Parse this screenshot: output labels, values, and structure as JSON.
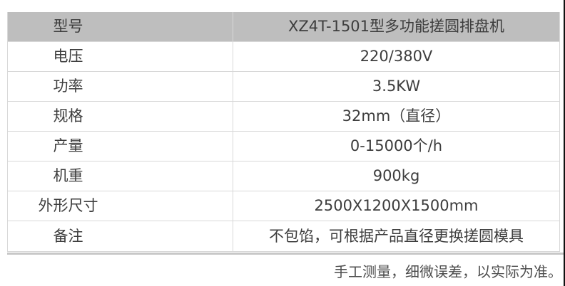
{
  "table": {
    "header": {
      "label": "型号",
      "value": "XZ4T-1501型多功能搓圆排盘机"
    },
    "rows": [
      {
        "label": "电压",
        "value": "220/380V"
      },
      {
        "label": "功率",
        "value": "3.5KW"
      },
      {
        "label": "规格",
        "value": "32mm（直径）"
      },
      {
        "label": "产量",
        "value": "0-15000个/h"
      },
      {
        "label": "机重",
        "value": "900kg"
      },
      {
        "label": "外形尺寸",
        "value": "2500X1200X1500mm"
      },
      {
        "label": "备注",
        "value": "不包馅，可根据产品直径更换搓圆模具"
      }
    ]
  },
  "footer": {
    "note": "手工测量，细微误差，以实际为准。"
  },
  "colors": {
    "header_bg": "#bebebe",
    "border": "#d8d8d8",
    "text": "#3d3d3d",
    "footer_text": "#4d4d4d",
    "shadow": "#c7c7c7",
    "edge_strip": "#111111"
  }
}
